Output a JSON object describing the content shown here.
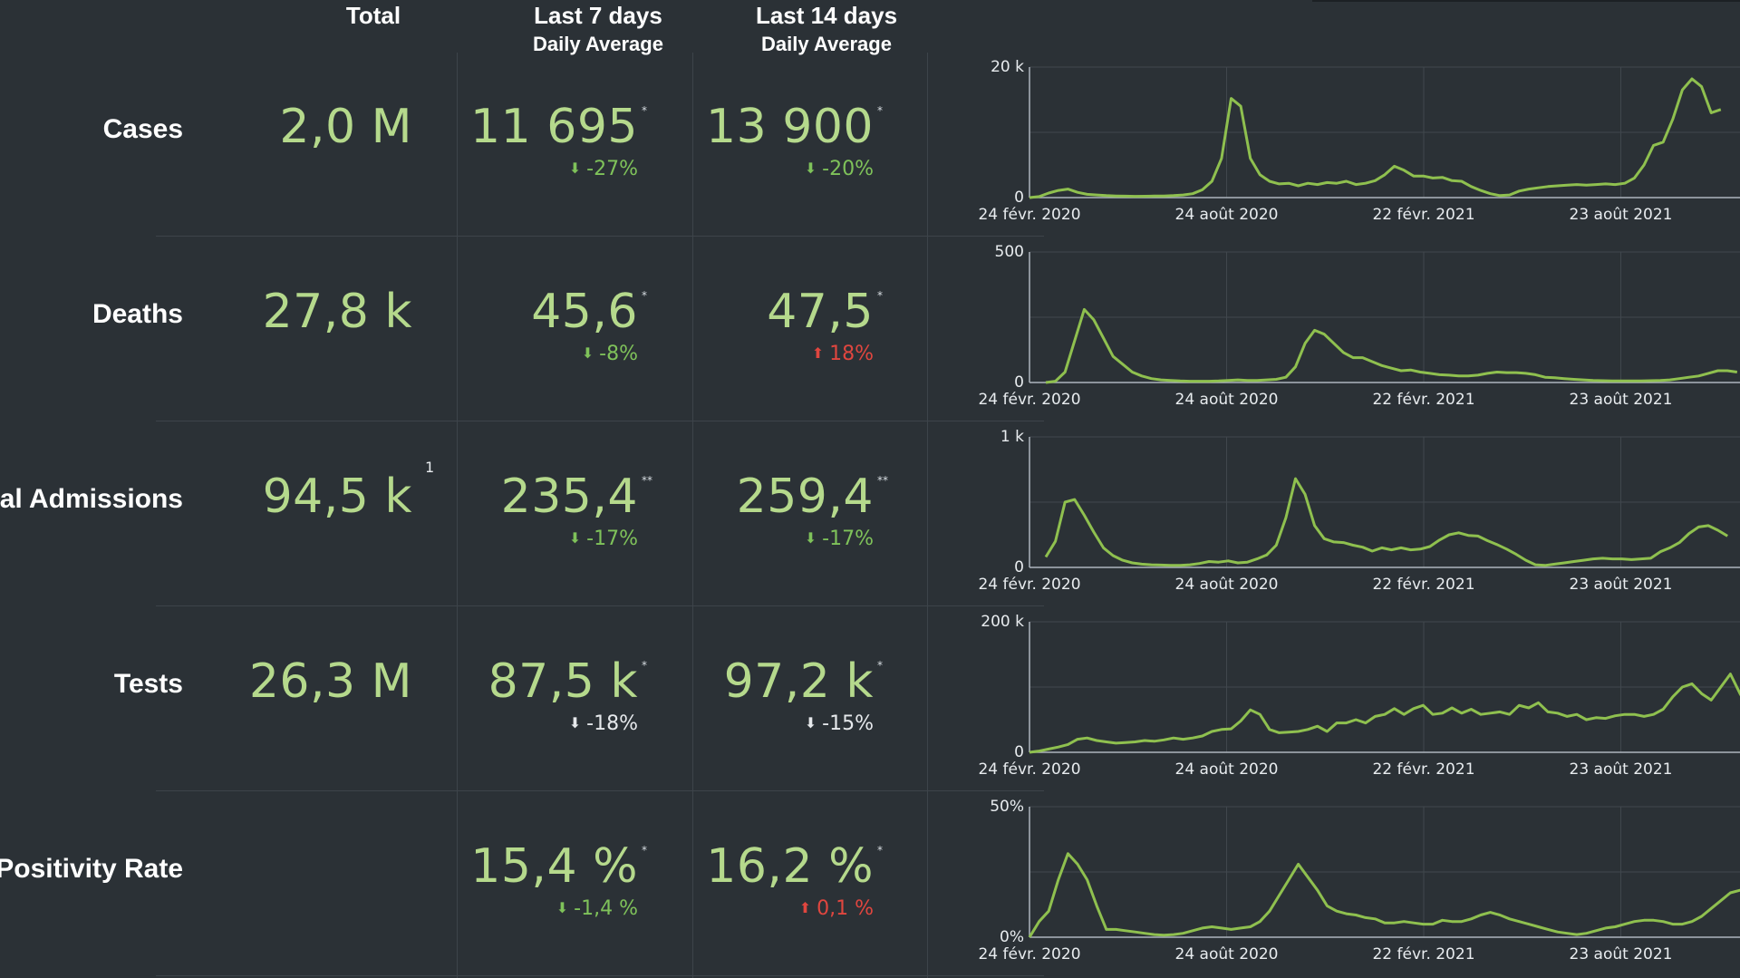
{
  "header": {
    "total": "Total",
    "last7": "Last 7 days",
    "last7_sub": "Daily Average",
    "last14": "Last 14 days",
    "last14_sub": "Daily Average"
  },
  "rows": [
    {
      "label": "Cases",
      "total": "2,0 M",
      "total_note": "",
      "last7": "11 695",
      "last7_mark": "*",
      "last7_change": "-27%",
      "last7_dir": "down",
      "last7_color": "green",
      "last14": "13 900",
      "last14_mark": "*",
      "last14_change": "-20%",
      "last14_dir": "down",
      "last14_color": "green"
    },
    {
      "label": "Deaths",
      "total": "27,8 k",
      "total_note": "",
      "last7": "45,6",
      "last7_mark": "*",
      "last7_change": "-8%",
      "last7_dir": "down",
      "last7_color": "green",
      "last14": "47,5",
      "last14_mark": "*",
      "last14_change": "18%",
      "last14_dir": "up",
      "last14_color": "red"
    },
    {
      "label": "ital Admissions",
      "total": "94,5 k",
      "total_note": "1",
      "last7": "235,4",
      "last7_mark": "**",
      "last7_change": "-17%",
      "last7_dir": "down",
      "last7_color": "green",
      "last14": "259,4",
      "last14_mark": "**",
      "last14_change": "-17%",
      "last14_dir": "down",
      "last14_color": "green"
    },
    {
      "label": "Tests",
      "total": "26,3 M",
      "total_note": "",
      "last7": "87,5 k",
      "last7_mark": "*",
      "last7_change": "-18%",
      "last7_dir": "down",
      "last7_color": "neutral",
      "last14": "97,2 k",
      "last14_mark": "*",
      "last14_change": "-15%",
      "last14_dir": "down",
      "last14_color": "neutral"
    },
    {
      "label": "Positivity Rate",
      "total": "",
      "total_note": "",
      "last7": "15,4 %",
      "last7_mark": "*",
      "last7_change": "-1,4 %",
      "last7_dir": "down",
      "last7_color": "green",
      "last14": "16,2 %",
      "last14_mark": "*",
      "last14_change": "0,1 %",
      "last14_dir": "up",
      "last14_color": "red"
    }
  ],
  "colors": {
    "background": "#2b3136",
    "value_green": "#b5d98c",
    "change_green": "#7fc25a",
    "change_red": "#e0463f",
    "change_neutral": "#e6e9ec",
    "line": "#8fc04f",
    "grid": "#40474d"
  },
  "chart_data": [
    {
      "type": "line",
      "name": "cases",
      "x_tick_labels": [
        "24 févr. 2020",
        "24 août 2020",
        "22 févr. 2021",
        "23 août 2021"
      ],
      "y_tick_labels": [
        "0",
        "20 k"
      ],
      "ylim": [
        0,
        20000
      ],
      "values": [
        0,
        150,
        700,
        1100,
        1300,
        800,
        500,
        400,
        300,
        250,
        220,
        200,
        210,
        230,
        250,
        300,
        400,
        600,
        1200,
        2500,
        6000,
        15200,
        14000,
        6000,
        3500,
        2500,
        2100,
        2200,
        1800,
        2200,
        2000,
        2300,
        2200,
        2500,
        2000,
        2200,
        2600,
        3500,
        4800,
        4200,
        3300,
        3300,
        3000,
        3100,
        2600,
        2500,
        1700,
        1100,
        600,
        300,
        400,
        1000,
        1300,
        1500,
        1700,
        1800,
        1900,
        2000,
        1900,
        2000,
        2100,
        2000,
        2200,
        3000,
        5000,
        8000,
        8500,
        12000,
        16500,
        18200,
        17000,
        13000,
        13500
      ]
    },
    {
      "type": "line",
      "name": "deaths",
      "x_tick_labels": [
        "24 févr. 2020",
        "24 août 2020",
        "22 févr. 2021",
        "23 août 2021"
      ],
      "y_tick_labels": [
        "0",
        "500"
      ],
      "ylim": [
        0,
        500
      ],
      "values": [
        0,
        5,
        40,
        160,
        280,
        240,
        170,
        100,
        70,
        40,
        25,
        15,
        10,
        8,
        6,
        5,
        5,
        5,
        6,
        8,
        10,
        8,
        8,
        10,
        12,
        20,
        60,
        150,
        200,
        185,
        150,
        115,
        95,
        95,
        80,
        65,
        55,
        45,
        48,
        40,
        35,
        30,
        28,
        25,
        25,
        28,
        35,
        40,
        38,
        38,
        35,
        30,
        20,
        18,
        15,
        12,
        10,
        8,
        7,
        6,
        6,
        6,
        6,
        7,
        8,
        10,
        15,
        20,
        25,
        35,
        45,
        45,
        40
      ]
    },
    {
      "type": "line",
      "name": "hospital admissions",
      "x_tick_labels": [
        "24 févr. 2020",
        "24 août 2020",
        "22 févr. 2021",
        "23 août 2021"
      ],
      "y_tick_labels": [
        "0",
        "1 k"
      ],
      "ylim": [
        0,
        1000
      ],
      "values": [
        80,
        200,
        500,
        520,
        400,
        270,
        150,
        90,
        55,
        35,
        25,
        20,
        18,
        15,
        15,
        20,
        30,
        45,
        40,
        50,
        35,
        40,
        65,
        95,
        170,
        380,
        680,
        560,
        320,
        220,
        195,
        190,
        170,
        155,
        125,
        150,
        135,
        150,
        135,
        140,
        160,
        210,
        250,
        265,
        245,
        240,
        205,
        175,
        140,
        100,
        55,
        20,
        15,
        25,
        35,
        45,
        55,
        65,
        70,
        65,
        65,
        60,
        65,
        70,
        120,
        150,
        190,
        260,
        310,
        320,
        285,
        240
      ]
    },
    {
      "type": "line",
      "name": "tests",
      "x_tick_labels": [
        "24 févr. 2020",
        "24 août 2020",
        "22 févr. 2021",
        "23 août 2021"
      ],
      "y_tick_labels": [
        "0",
        "200 k"
      ],
      "ylim": [
        0,
        200000
      ],
      "values": [
        0,
        2000,
        5000,
        8000,
        12000,
        20000,
        22000,
        18000,
        16000,
        14000,
        15000,
        16000,
        18000,
        17000,
        19000,
        22000,
        20000,
        22000,
        25000,
        32000,
        35000,
        36000,
        48000,
        65000,
        58000,
        35000,
        30000,
        31000,
        32000,
        35000,
        40000,
        32000,
        45000,
        45000,
        50000,
        45000,
        55000,
        58000,
        67000,
        58000,
        67000,
        72000,
        58000,
        60000,
        68000,
        60000,
        66000,
        58000,
        60000,
        62000,
        58000,
        72000,
        68000,
        76000,
        62000,
        60000,
        55000,
        58000,
        50000,
        53000,
        52000,
        56000,
        58000,
        58000,
        55000,
        58000,
        66000,
        85000,
        100000,
        105000,
        90000,
        80000,
        100000,
        120000,
        90000,
        65000
      ]
    },
    {
      "type": "line",
      "name": "positivity rate",
      "x_tick_labels": [
        "24 févr. 2020",
        "24 août 2020",
        "22 févr. 2021",
        "23 août 2021"
      ],
      "y_tick_labels": [
        "0%",
        "50%"
      ],
      "ylim": [
        0,
        50
      ],
      "values": [
        0,
        6,
        10,
        22,
        32,
        28,
        22,
        12,
        3,
        3,
        2.5,
        2,
        1.5,
        1,
        0.8,
        1,
        1.5,
        2.5,
        3.5,
        4,
        3.5,
        3,
        3.5,
        4,
        6,
        10,
        16,
        22,
        28,
        23,
        18,
        12,
        10,
        9,
        8.5,
        7.5,
        7,
        5.5,
        5.5,
        6,
        5.5,
        5,
        5,
        6.5,
        6,
        6,
        7,
        8.5,
        9.5,
        8.5,
        7,
        6,
        5,
        4,
        3,
        2,
        1.5,
        1,
        1.5,
        2.5,
        3.5,
        4,
        5,
        6,
        6.5,
        6.5,
        6,
        5,
        5,
        6,
        8,
        11,
        14,
        17,
        18,
        17
      ]
    }
  ]
}
